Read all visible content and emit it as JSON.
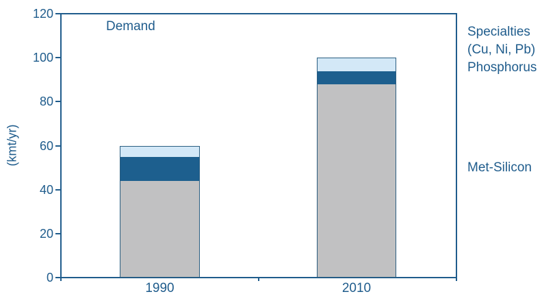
{
  "chart_data": {
    "type": "bar",
    "stacked": true,
    "title": "Demand",
    "ylabel": "(kmt/yr)",
    "xlabel": "",
    "ylim": [
      0,
      120
    ],
    "ytick_step": 20,
    "grid": false,
    "legend_position": "right",
    "categories": [
      "1990",
      "2010"
    ],
    "series": [
      {
        "name": "Met-Silicon",
        "values": [
          44,
          88
        ],
        "color_key": "met_silicon_gray"
      },
      {
        "name": "Phosphorus",
        "values": [
          11,
          6
        ],
        "color_key": "phosphorus_dark_blue"
      },
      {
        "name": "Specialties (Cu, Ni, Pb)",
        "values": [
          5,
          6
        ],
        "color_key": "specialties_light_blue"
      }
    ],
    "totals": [
      60,
      100
    ]
  },
  "legend": {
    "specialties_line1": "Specialties",
    "specialties_line2": "(Cu, Ni, Pb)",
    "phosphorus": "Phosphorus",
    "met_silicon": "Met-Silicon"
  },
  "colors": {
    "axis_blue": "#1f5c8c",
    "text_blue": "#1f5c8c",
    "bar_border_blue": "#2a5d80",
    "met_silicon_gray": "#c1c1c2",
    "phosphorus_dark_blue": "#1d5f8e",
    "specialties_light_blue": "#d3e8f7",
    "background": "#ffffff"
  }
}
